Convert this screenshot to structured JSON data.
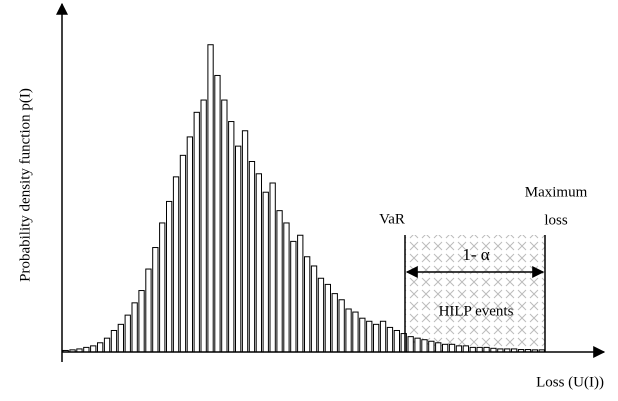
{
  "chart_data": {
    "type": "histogram",
    "xlabel": "Loss (U(I))",
    "ylabel": "Probability density function p(I)",
    "values": [
      0.5,
      0.7,
      1,
      1.5,
      2,
      3,
      4.5,
      7,
      9,
      12,
      16,
      20,
      27,
      34,
      42,
      49,
      57,
      64,
      70,
      78,
      82,
      100,
      90,
      82,
      75,
      67,
      72,
      62,
      58,
      52,
      55,
      46,
      42,
      36,
      38,
      31,
      28,
      24,
      22,
      19,
      17,
      14,
      13,
      11,
      10,
      9,
      10,
      8,
      7,
      6,
      5,
      4.5,
      4,
      3.5,
      3,
      2.5,
      2.5,
      2,
      2,
      1.5,
      1.5,
      1.5,
      1.2,
      1,
      1,
      1,
      0.8,
      0.8,
      0.7,
      0.7
    ],
    "color": "#ffffff",
    "ylim": [
      0,
      110
    ],
    "annotations": {
      "var": "VaR",
      "max_loss_1": "Maximum",
      "max_loss_2": "loss",
      "confidence": "1- α",
      "region": "HILP events"
    }
  }
}
